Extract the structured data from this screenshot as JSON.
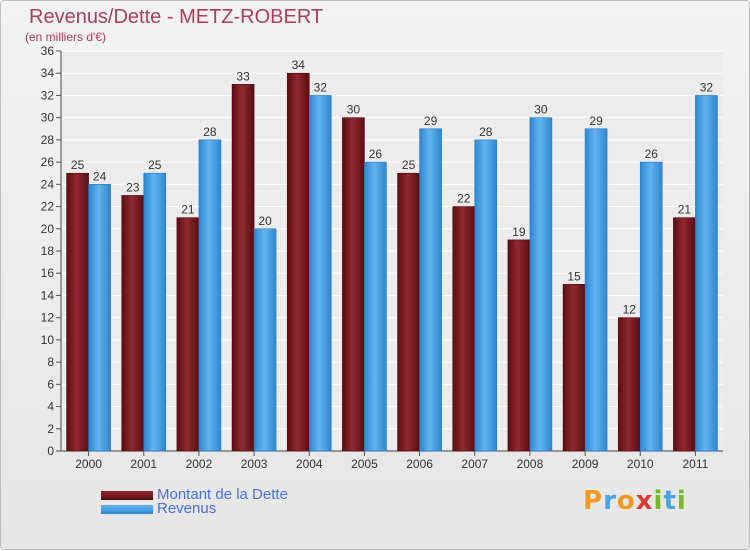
{
  "header": {
    "title": "Revenus/Dette - METZ-ROBERT",
    "subtitle": "(en milliers d'€)"
  },
  "colors": {
    "debt": "#7a1a1f",
    "revenue": "#4ba3e3",
    "title": "#b03c5b",
    "legend_text": "#4a6fd8"
  },
  "chart_data": {
    "type": "bar",
    "title": "Revenus/Dette - METZ-ROBERT",
    "subtitle": "(en milliers d'€)",
    "categories": [
      "2000",
      "2001",
      "2002",
      "2003",
      "2004",
      "2005",
      "2006",
      "2007",
      "2008",
      "2009",
      "2010",
      "2011"
    ],
    "series": [
      {
        "name": "Montant de la Dette",
        "values": [
          25,
          23,
          21,
          33,
          34,
          30,
          25,
          22,
          19,
          15,
          12,
          21
        ]
      },
      {
        "name": "Revenus",
        "values": [
          24,
          25,
          28,
          20,
          32,
          26,
          29,
          28,
          30,
          29,
          26,
          32
        ]
      }
    ],
    "ylim": [
      0,
      36
    ],
    "yticks": [
      0,
      2,
      4,
      6,
      8,
      10,
      12,
      14,
      16,
      18,
      20,
      22,
      24,
      26,
      28,
      30,
      32,
      34,
      36
    ],
    "grid": true,
    "legend_position": "bottom-left",
    "data_labels": true
  },
  "legend": {
    "items": [
      {
        "label": "Montant de la Dette"
      },
      {
        "label": "Revenus"
      }
    ]
  },
  "logo": {
    "text": "Proxiti",
    "letters": [
      {
        "ch": "P",
        "color": "#f39a1e"
      },
      {
        "ch": "r",
        "color": "#4ba3e3"
      },
      {
        "ch": "o",
        "color": "#f39a1e"
      },
      {
        "ch": "x",
        "color": "#d83a3a"
      },
      {
        "ch": "i",
        "color": "#77b82a"
      },
      {
        "ch": "t",
        "color": "#4ba3e3"
      },
      {
        "ch": "i",
        "color": "#77b82a"
      }
    ]
  }
}
